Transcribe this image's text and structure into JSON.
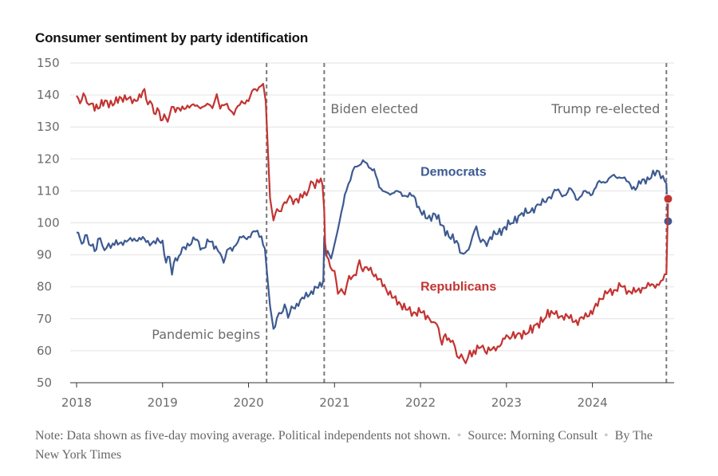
{
  "title": "Consumer sentiment by party identification",
  "footnote": {
    "note": "Note: Data shown as five-day moving average. Political independents not shown.",
    "source": "Source: Morning Consult",
    "byline": "By The New York Times"
  },
  "colors": {
    "democrats": "#3d5a91",
    "republicans": "#c23432",
    "event_line": "#7a7a7a",
    "grid": "#e3e3e3",
    "axis": "#333333"
  },
  "chart_data": {
    "type": "line",
    "title": "Consumer sentiment by party identification",
    "xlabel": "",
    "ylabel": "",
    "xlim": [
      2018,
      2024.95
    ],
    "ylim": [
      50,
      150
    ],
    "y_ticks": [
      50,
      60,
      70,
      80,
      90,
      100,
      110,
      120,
      130,
      140,
      150
    ],
    "x_ticks": [
      2018,
      2019,
      2020,
      2021,
      2022,
      2023,
      2024
    ],
    "x_tick_labels": [
      "2018",
      "2019",
      "2020",
      "2021",
      "2022",
      "2023",
      "2024"
    ],
    "grid": true,
    "events": [
      {
        "x": 2020.21,
        "label": "Pandemic begins",
        "label_side": "left"
      },
      {
        "x": 2020.88,
        "label": "Biden elected",
        "label_side": "right"
      },
      {
        "x": 2024.86,
        "label": "Trump re-elected",
        "label_side": "left"
      }
    ],
    "series": [
      {
        "name": "Democrats",
        "color": "#3d5a91",
        "end_marker": true,
        "points": [
          [
            2018.0,
            97
          ],
          [
            2018.04,
            95
          ],
          [
            2018.08,
            94
          ],
          [
            2018.12,
            96
          ],
          [
            2018.17,
            93
          ],
          [
            2018.21,
            91
          ],
          [
            2018.25,
            95
          ],
          [
            2018.3,
            93
          ],
          [
            2018.35,
            92
          ],
          [
            2018.42,
            94
          ],
          [
            2018.5,
            93
          ],
          [
            2018.58,
            95
          ],
          [
            2018.67,
            94
          ],
          [
            2018.75,
            96
          ],
          [
            2018.83,
            93
          ],
          [
            2018.92,
            95
          ],
          [
            2019.0,
            93
          ],
          [
            2019.04,
            89
          ],
          [
            2019.08,
            88
          ],
          [
            2019.11,
            85
          ],
          [
            2019.15,
            88
          ],
          [
            2019.21,
            91
          ],
          [
            2019.29,
            93
          ],
          [
            2019.38,
            95
          ],
          [
            2019.46,
            92
          ],
          [
            2019.54,
            94
          ],
          [
            2019.62,
            93
          ],
          [
            2019.67,
            90
          ],
          [
            2019.71,
            88
          ],
          [
            2019.75,
            91
          ],
          [
            2019.83,
            93
          ],
          [
            2019.92,
            95
          ],
          [
            2020.0,
            96
          ],
          [
            2020.08,
            97
          ],
          [
            2020.15,
            96
          ],
          [
            2020.19,
            92
          ],
          [
            2020.22,
            83
          ],
          [
            2020.25,
            74
          ],
          [
            2020.29,
            67
          ],
          [
            2020.33,
            70
          ],
          [
            2020.38,
            72
          ],
          [
            2020.42,
            74
          ],
          [
            2020.46,
            71
          ],
          [
            2020.5,
            73
          ],
          [
            2020.58,
            75
          ],
          [
            2020.67,
            77
          ],
          [
            2020.75,
            79
          ],
          [
            2020.83,
            80
          ],
          [
            2020.87,
            82
          ],
          [
            2020.88,
            94
          ],
          [
            2020.9,
            91
          ],
          [
            2020.94,
            89
          ],
          [
            2020.98,
            91
          ],
          [
            2021.04,
            98
          ],
          [
            2021.1,
            106
          ],
          [
            2021.16,
            112
          ],
          [
            2021.21,
            116
          ],
          [
            2021.26,
            118
          ],
          [
            2021.33,
            119
          ],
          [
            2021.4,
            118
          ],
          [
            2021.46,
            116
          ],
          [
            2021.52,
            112
          ],
          [
            2021.58,
            109
          ],
          [
            2021.67,
            110
          ],
          [
            2021.75,
            109
          ],
          [
            2021.83,
            109
          ],
          [
            2021.92,
            108
          ],
          [
            2022.0,
            104
          ],
          [
            2022.08,
            101
          ],
          [
            2022.17,
            103
          ],
          [
            2022.25,
            99
          ],
          [
            2022.33,
            96
          ],
          [
            2022.42,
            94
          ],
          [
            2022.48,
            91
          ],
          [
            2022.52,
            90
          ],
          [
            2022.58,
            94
          ],
          [
            2022.65,
            98
          ],
          [
            2022.7,
            95
          ],
          [
            2022.75,
            93
          ],
          [
            2022.83,
            96
          ],
          [
            2022.92,
            97
          ],
          [
            2023.0,
            99
          ],
          [
            2023.1,
            101
          ],
          [
            2023.2,
            103
          ],
          [
            2023.3,
            104
          ],
          [
            2023.4,
            106
          ],
          [
            2023.5,
            108
          ],
          [
            2023.58,
            110
          ],
          [
            2023.67,
            109
          ],
          [
            2023.75,
            110
          ],
          [
            2023.83,
            108
          ],
          [
            2023.92,
            109
          ],
          [
            2024.0,
            110
          ],
          [
            2024.08,
            112
          ],
          [
            2024.17,
            114
          ],
          [
            2024.25,
            114
          ],
          [
            2024.33,
            115
          ],
          [
            2024.42,
            112
          ],
          [
            2024.5,
            111
          ],
          [
            2024.58,
            113
          ],
          [
            2024.66,
            114
          ],
          [
            2024.75,
            116
          ],
          [
            2024.82,
            115
          ],
          [
            2024.86,
            112
          ],
          [
            2024.87,
            106
          ],
          [
            2024.88,
            100.5
          ]
        ]
      },
      {
        "name": "Republicans",
        "color": "#c23432",
        "end_marker": true,
        "points": [
          [
            2018.0,
            139
          ],
          [
            2018.04,
            138
          ],
          [
            2018.08,
            140
          ],
          [
            2018.12,
            138
          ],
          [
            2018.17,
            137
          ],
          [
            2018.25,
            136
          ],
          [
            2018.33,
            138
          ],
          [
            2018.42,
            137
          ],
          [
            2018.5,
            139
          ],
          [
            2018.58,
            139
          ],
          [
            2018.67,
            138
          ],
          [
            2018.75,
            140
          ],
          [
            2018.79,
            141
          ],
          [
            2018.83,
            138
          ],
          [
            2018.88,
            136
          ],
          [
            2018.92,
            135
          ],
          [
            2018.96,
            134
          ],
          [
            2019.0,
            133
          ],
          [
            2019.04,
            132
          ],
          [
            2019.08,
            134
          ],
          [
            2019.13,
            136
          ],
          [
            2019.21,
            135
          ],
          [
            2019.29,
            137
          ],
          [
            2019.38,
            136
          ],
          [
            2019.46,
            137
          ],
          [
            2019.54,
            136
          ],
          [
            2019.58,
            137
          ],
          [
            2019.63,
            139
          ],
          [
            2019.67,
            137
          ],
          [
            2019.75,
            136
          ],
          [
            2019.83,
            135
          ],
          [
            2019.92,
            137
          ],
          [
            2020.0,
            139
          ],
          [
            2020.06,
            141
          ],
          [
            2020.12,
            143
          ],
          [
            2020.17,
            143
          ],
          [
            2020.2,
            138
          ],
          [
            2020.23,
            120
          ],
          [
            2020.25,
            108
          ],
          [
            2020.27,
            104
          ],
          [
            2020.29,
            101
          ],
          [
            2020.33,
            104
          ],
          [
            2020.38,
            104
          ],
          [
            2020.42,
            106
          ],
          [
            2020.46,
            108
          ],
          [
            2020.5,
            107
          ],
          [
            2020.58,
            107
          ],
          [
            2020.65,
            109
          ],
          [
            2020.7,
            111
          ],
          [
            2020.75,
            112
          ],
          [
            2020.82,
            113
          ],
          [
            2020.86,
            112
          ],
          [
            2020.88,
            104
          ],
          [
            2020.89,
            94
          ],
          [
            2020.91,
            89
          ],
          [
            2020.95,
            87
          ],
          [
            2021.0,
            84
          ],
          [
            2021.04,
            79
          ],
          [
            2021.08,
            78
          ],
          [
            2021.12,
            79
          ],
          [
            2021.17,
            82
          ],
          [
            2021.25,
            85
          ],
          [
            2021.29,
            87
          ],
          [
            2021.33,
            86
          ],
          [
            2021.42,
            85
          ],
          [
            2021.5,
            83
          ],
          [
            2021.58,
            80
          ],
          [
            2021.67,
            77
          ],
          [
            2021.75,
            75
          ],
          [
            2021.83,
            73
          ],
          [
            2021.92,
            72
          ],
          [
            2022.0,
            72
          ],
          [
            2022.08,
            71
          ],
          [
            2022.15,
            69
          ],
          [
            2022.21,
            67
          ],
          [
            2022.25,
            62
          ],
          [
            2022.29,
            65
          ],
          [
            2022.35,
            63
          ],
          [
            2022.4,
            61
          ],
          [
            2022.45,
            58
          ],
          [
            2022.5,
            57
          ],
          [
            2022.55,
            58
          ],
          [
            2022.62,
            60
          ],
          [
            2022.7,
            61
          ],
          [
            2022.75,
            60
          ],
          [
            2022.83,
            60
          ],
          [
            2022.92,
            62
          ],
          [
            2023.0,
            64
          ],
          [
            2023.1,
            65
          ],
          [
            2023.2,
            65
          ],
          [
            2023.3,
            67
          ],
          [
            2023.4,
            69
          ],
          [
            2023.5,
            72
          ],
          [
            2023.58,
            71
          ],
          [
            2023.67,
            71
          ],
          [
            2023.75,
            70
          ],
          [
            2023.83,
            69
          ],
          [
            2023.92,
            71
          ],
          [
            2024.0,
            72
          ],
          [
            2024.08,
            76
          ],
          [
            2024.17,
            78
          ],
          [
            2024.25,
            79
          ],
          [
            2024.33,
            80
          ],
          [
            2024.42,
            79
          ],
          [
            2024.5,
            78
          ],
          [
            2024.58,
            80
          ],
          [
            2024.67,
            80
          ],
          [
            2024.75,
            81
          ],
          [
            2024.82,
            82
          ],
          [
            2024.86,
            84
          ],
          [
            2024.87,
            96
          ],
          [
            2024.88,
            107.5
          ]
        ]
      }
    ],
    "series_labels": [
      {
        "series": "Democrats",
        "x": 2022.0,
        "y": 116
      },
      {
        "series": "Republicans",
        "x": 2022.0,
        "y": 80
      }
    ]
  }
}
